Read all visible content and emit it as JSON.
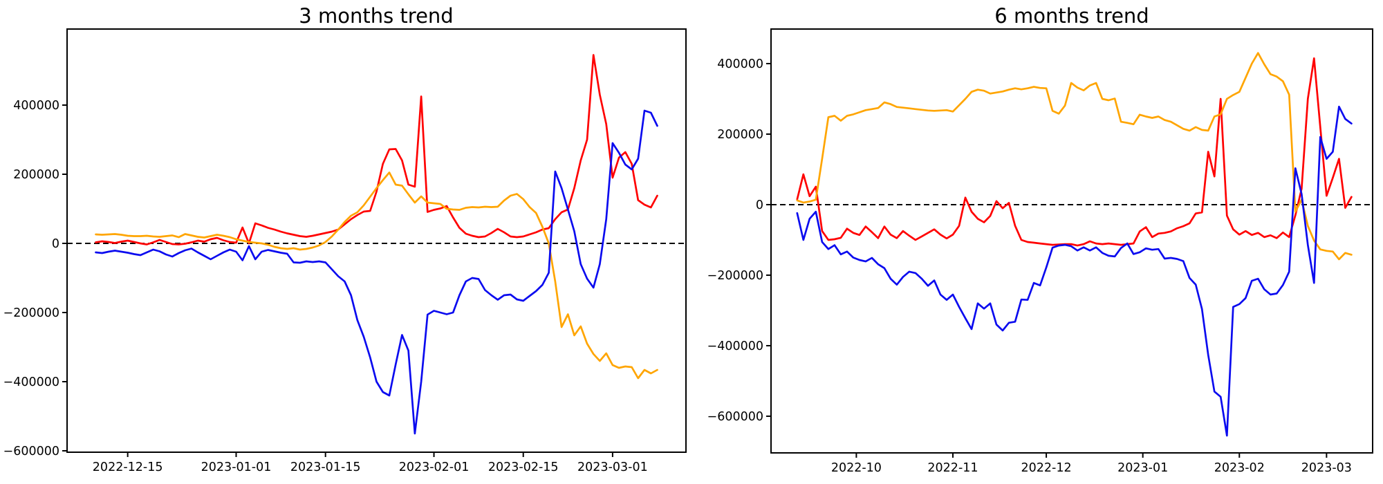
{
  "figure": {
    "background": "#ffffff"
  },
  "chart_data": [
    {
      "type": "line",
      "title": "3 months trend",
      "xlabel": "",
      "ylabel": "",
      "grid": false,
      "legend": "none",
      "zero_line": {
        "style": "dashed",
        "color": "#000000"
      },
      "x_unit": "days (daily points starting 2022-12-10)",
      "x_tick_labels": [
        "2022-12-15",
        "2023-01-01",
        "2023-01-15",
        "2023-02-01",
        "2023-02-15",
        "2023-03-01"
      ],
      "x_tick_idx": [
        5,
        22,
        36,
        53,
        67,
        81
      ],
      "xlim_idx": [
        -4.5,
        92.5
      ],
      "y_tick_values": [
        400000,
        200000,
        0,
        -200000,
        -400000,
        -600000
      ],
      "y_tick_labels": [
        "400000",
        "200000",
        "0",
        "−200000",
        "−400000",
        "−600000"
      ],
      "ylim": [
        -604000,
        620000
      ],
      "unit_scale": 1000,
      "series": [
        {
          "name": "red",
          "color": "#ff0000",
          "values": [
            3,
            6,
            4,
            1,
            5,
            8,
            4,
            0,
            -3,
            3,
            10,
            4,
            -2,
            -3,
            -1,
            3,
            8,
            5,
            12,
            16,
            9,
            4,
            2,
            46,
            0,
            58,
            52,
            45,
            40,
            34,
            29,
            25,
            21,
            19,
            22,
            26,
            30,
            34,
            40,
            55,
            70,
            82,
            92,
            94,
            150,
            230,
            272,
            273,
            240,
            170,
            164,
            425,
            91,
            97,
            101,
            108,
            75,
            45,
            28,
            22,
            18,
            20,
            30,
            42,
            32,
            20,
            18,
            20,
            26,
            32,
            40,
            44,
            70,
            90,
            98,
            160,
            240,
            300,
            545,
            430,
            345,
            190,
            248,
            264,
            230,
            125,
            112,
            104,
            138
          ]
        },
        {
          "name": "orange",
          "color": "#ffa500",
          "values": [
            26,
            25,
            26,
            27,
            25,
            22,
            21,
            21,
            22,
            20,
            19,
            21,
            23,
            18,
            27,
            23,
            19,
            17,
            21,
            25,
            22,
            18,
            12,
            8,
            4,
            2,
            0,
            -4,
            -10,
            -14,
            -16,
            -14,
            -18,
            -16,
            -12,
            -6,
            4,
            20,
            40,
            62,
            80,
            90,
            110,
            135,
            160,
            183,
            205,
            170,
            167,
            142,
            118,
            136,
            118,
            116,
            114,
            100,
            98,
            97,
            103,
            105,
            104,
            106,
            105,
            106,
            124,
            138,
            143,
            128,
            105,
            88,
            48,
            0,
            -110,
            -242,
            -205,
            -266,
            -240,
            -290,
            -320,
            -340,
            -318,
            -352,
            -360,
            -356,
            -358,
            -390,
            -366,
            -376,
            -366
          ]
        },
        {
          "name": "blue",
          "color": "#0b0bef",
          "values": [
            -26,
            -28,
            -24,
            -21,
            -24,
            -27,
            -31,
            -34,
            -26,
            -18,
            -23,
            -32,
            -38,
            -28,
            -20,
            -15,
            -26,
            -36,
            -46,
            -36,
            -26,
            -18,
            -24,
            -49,
            -8,
            -46,
            -24,
            -19,
            -23,
            -27,
            -30,
            -55,
            -56,
            -52,
            -54,
            -52,
            -55,
            -75,
            -95,
            -110,
            -150,
            -222,
            -270,
            -330,
            -400,
            -430,
            -440,
            -350,
            -265,
            -310,
            -550,
            -400,
            -206,
            -195,
            -200,
            -205,
            -200,
            -150,
            -110,
            -100,
            -103,
            -135,
            -150,
            -163,
            -150,
            -148,
            -162,
            -166,
            -152,
            -138,
            -120,
            -85,
            208,
            160,
            98,
            35,
            -60,
            -102,
            -128,
            -60,
            70,
            290,
            262,
            228,
            214,
            245,
            384,
            378,
            340
          ]
        }
      ]
    },
    {
      "type": "line",
      "title": "6 months trend",
      "xlabel": "",
      "ylabel": "",
      "grid": false,
      "legend": "none",
      "zero_line": {
        "style": "dashed",
        "color": "#000000"
      },
      "x_unit": "2-day steps starting 2022-09-12",
      "x_tick_labels": [
        "2022-10",
        "2022-11",
        "2022-12",
        "2023-01",
        "2023-02",
        "2023-03"
      ],
      "x_tick_idx": [
        9.5,
        25,
        40,
        55.5,
        71,
        85
      ],
      "xlim_idx": [
        -4.2,
        92.4
      ],
      "y_tick_values": [
        400000,
        200000,
        0,
        -200000,
        -400000,
        -600000
      ],
      "y_tick_labels": [
        "400000",
        "200000",
        "0",
        "−200000",
        "−400000",
        "−600000"
      ],
      "ylim": [
        -704000,
        498000
      ],
      "unit_scale": 1000,
      "series": [
        {
          "name": "red",
          "color": "#ff0000",
          "values": [
            15,
            86,
            24,
            51,
            -75,
            -100,
            -98,
            -94,
            -68,
            -80,
            -86,
            -62,
            -78,
            -95,
            -62,
            -85,
            -95,
            -75,
            -88,
            -100,
            -90,
            -80,
            -70,
            -85,
            -96,
            -85,
            -60,
            20,
            -20,
            -40,
            -50,
            -32,
            10,
            -10,
            5,
            -60,
            -100,
            -106,
            -108,
            -110,
            -112,
            -114,
            -113,
            -112,
            -112,
            -116,
            -112,
            -104,
            -110,
            -112,
            -110,
            -112,
            -114,
            -112,
            -110,
            -76,
            -64,
            -92,
            -82,
            -80,
            -76,
            -67,
            -61,
            -53,
            -25,
            -22,
            150,
            80,
            300,
            -31,
            -70,
            -85,
            -75,
            -86,
            -80,
            -92,
            -87,
            -95,
            -79,
            -92,
            -30,
            45,
            300,
            415,
            220,
            25,
            76,
            130,
            -9,
            22
          ]
        },
        {
          "name": "orange",
          "color": "#ffa500",
          "values": [
            12,
            6,
            9,
            14,
            130,
            248,
            252,
            238,
            252,
            256,
            262,
            268,
            271,
            274,
            290,
            285,
            277,
            275,
            273,
            271,
            269,
            267,
            266,
            267,
            268,
            264,
            282,
            300,
            320,
            326,
            323,
            315,
            318,
            321,
            326,
            330,
            327,
            330,
            334,
            331,
            330,
            266,
            258,
            281,
            345,
            332,
            324,
            338,
            345,
            300,
            296,
            301,
            235,
            232,
            228,
            255,
            250,
            246,
            250,
            240,
            235,
            225,
            215,
            210,
            220,
            212,
            210,
            250,
            256,
            300,
            311,
            320,
            360,
            400,
            430,
            398,
            370,
            363,
            350,
            312,
            -20,
            14,
            -60,
            -102,
            -127,
            -131,
            -133,
            -155,
            -137,
            -142
          ]
        },
        {
          "name": "blue",
          "color": "#0b0bef",
          "values": [
            -24,
            -100,
            -40,
            -20,
            -106,
            -126,
            -115,
            -141,
            -133,
            -150,
            -157,
            -161,
            -151,
            -169,
            -180,
            -210,
            -227,
            -205,
            -190,
            -194,
            -210,
            -230,
            -215,
            -255,
            -270,
            -255,
            -290,
            -322,
            -353,
            -280,
            -295,
            -280,
            -340,
            -357,
            -335,
            -332,
            -269,
            -270,
            -222,
            -229,
            -178,
            -122,
            -116,
            -114,
            -118,
            -130,
            -121,
            -130,
            -121,
            -137,
            -145,
            -147,
            -123,
            -110,
            -140,
            -135,
            -124,
            -128,
            -126,
            -153,
            -151,
            -154,
            -160,
            -208,
            -227,
            -296,
            -426,
            -530,
            -545,
            -655,
            -290,
            -282,
            -265,
            -216,
            -210,
            -240,
            -255,
            -252,
            -228,
            -190,
            103,
            30,
            -114,
            -222,
            192,
            130,
            150,
            278,
            243,
            230
          ]
        }
      ]
    }
  ]
}
